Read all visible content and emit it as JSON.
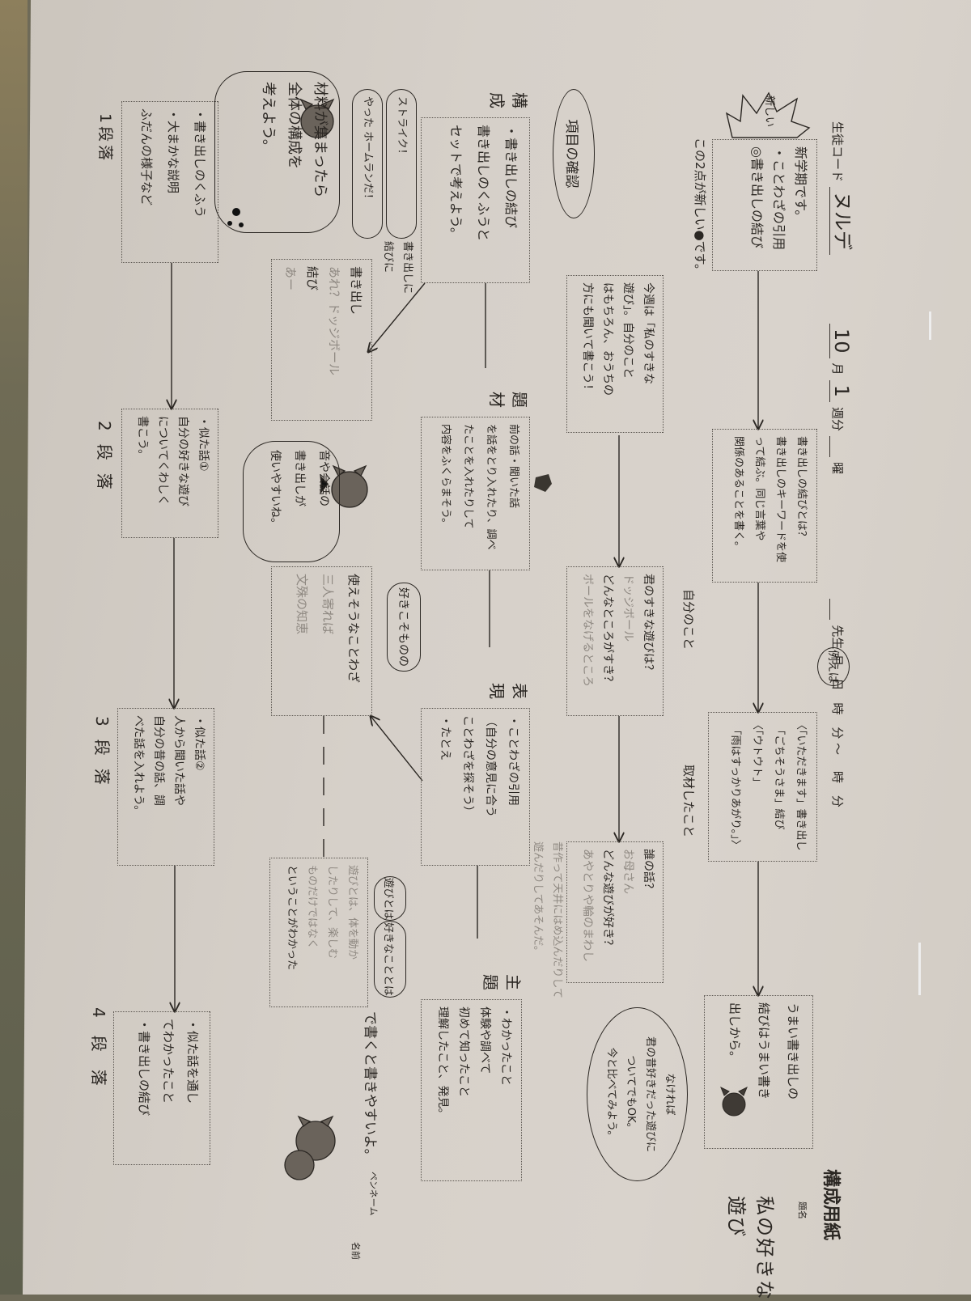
{
  "header": {
    "student_code_label": "生徒コード",
    "student_code_value": "ヌルデ",
    "month": "10",
    "month_label": "月",
    "week": "1",
    "week_label": "週分",
    "weekday_label": "曜",
    "teacher_label": "先生",
    "date_labels": "月　日　時　分 ～ 　時　分",
    "sheet_title": "構成用紙",
    "title_label": "題名",
    "title_value": "私の好きな遊び",
    "name_label": "名前",
    "penname_label": "ペンネーム"
  },
  "notes": {
    "new_burst": "新しい",
    "new_note": "この2点が新しい●です。",
    "example_oval": "例えば",
    "check_items_oval": "項目の確認",
    "own_things_label": "自分のこと",
    "interview_label": "取材したこと"
  },
  "guide_boxes": [
    {
      "lines": [
        "新学期です。",
        "・ことわざの引用",
        "◎書き出しの結び"
      ]
    },
    {
      "lines": [
        "書き出しの結びとは？",
        "書き出しのキーワードを使",
        "って結ぶ。同じ言葉や",
        "関係のあることを書く。"
      ]
    },
    {
      "lines": [
        "〈「いただきます」書き出し",
        "　「ごちそうさま」結び",
        "〈「ウトウト」",
        "　「雨はすっかりあがり。」〉"
      ]
    },
    {
      "lines": [
        "うまい書き出しの",
        "結びはうまい書き",
        "出しから。"
      ]
    }
  ],
  "question_boxes": [
    {
      "lines": [
        "今週は「私のすきな",
        "遊び」。自分のこと",
        "はもちろん、おうちの",
        "方にも聞いて書こう！"
      ]
    },
    {
      "lines": [
        "君のすきな遊びは？",
        "ドッジボール",
        "どんなところがすき？",
        "ボールをなげるところ"
      ]
    },
    {
      "lines": [
        "誰の話？",
        "お母さん",
        "どんな遊びが好き？",
        "あやとりや輪のまわし"
      ]
    }
  ],
  "interview_faint": [
    "昔作って天井にはめ込んだりして",
    "遊んだりしてあそんだ。"
  ],
  "circle_note": {
    "lines": [
      "なければ",
      "君の昔好きだった遊びに",
      "ついてでもOK。",
      "今と比べてみよう。"
    ]
  },
  "element_boxes": [
    {
      "tag": "構成",
      "lines": [
        "・書き出しの結び",
        "書き出しのくふうと",
        "セットで考えよう。"
      ]
    },
    {
      "tag": "題材",
      "lines": [
        "前の話・聞いた話",
        "を話をとり入れたり、調べ",
        "たことを入れたりして",
        "内容をふくらまそう。"
      ]
    },
    {
      "tag": "表現",
      "lines": [
        "・ことわざの引用",
        "（自分の意見に合う",
        "ことわざを探そう）",
        "・たとえ"
      ]
    },
    {
      "tag": "主題",
      "lines": [
        "・わかったこと",
        "体験や調べて",
        "初めて知ったこと",
        "理解したこと、発見。"
      ]
    }
  ],
  "draft": {
    "bubble_strike": [
      "ストライク！",
      "やった ホームランだ！"
    ],
    "bubble_open_close": "書き出しに 結びに",
    "opening_box": {
      "lines": [
        "書き出し",
        "あれ？ドッジボール",
        "結び",
        "あー"
      ]
    },
    "cat_bubble": [
      "音や会話の",
      "書き出しが",
      "使いやすいね。"
    ],
    "proverb_bubble": "好きこそものの",
    "proverb_box": {
      "lines": [
        "使えそうなことわざ",
        "三人寄れば",
        "文殊の知恵"
      ]
    },
    "theme_box": {
      "lines": [
        "遊びとは、体を動か",
        "したりして、楽しむ",
        "ものだけではなく",
        "ということがわかった"
      ]
    },
    "bubble_play": "遊びとは",
    "bubble_likes": "好きなこととは",
    "tail_note": "で書くと書きやすいよ。"
  },
  "structure": {
    "cloud": [
      "材料が集まったら",
      "全体の構成を",
      "考えよう。"
    ],
    "paragraphs": [
      {
        "label": "1段落",
        "lines": [
          "・書き出しのくふう",
          "・大まかな説明",
          "ふだんの様子など"
        ]
      },
      {
        "label": "2段落",
        "lines": [
          "・似た話①",
          "自分の好きな遊び",
          "についてくわしく",
          "書こう。"
        ]
      },
      {
        "label": "3段落",
        "lines": [
          "・似た話②",
          "人から聞いた話や",
          "自分の昔の話、調",
          "べた話を入れよう。"
        ]
      },
      {
        "label": "4段落",
        "lines": [
          "・似た話を通し",
          "てわかったこと",
          "・書き出しの結び"
        ]
      }
    ]
  },
  "colors": {
    "paper": "#d6d0c9",
    "ink": "#2b2723",
    "pencil": "#8f8982"
  }
}
